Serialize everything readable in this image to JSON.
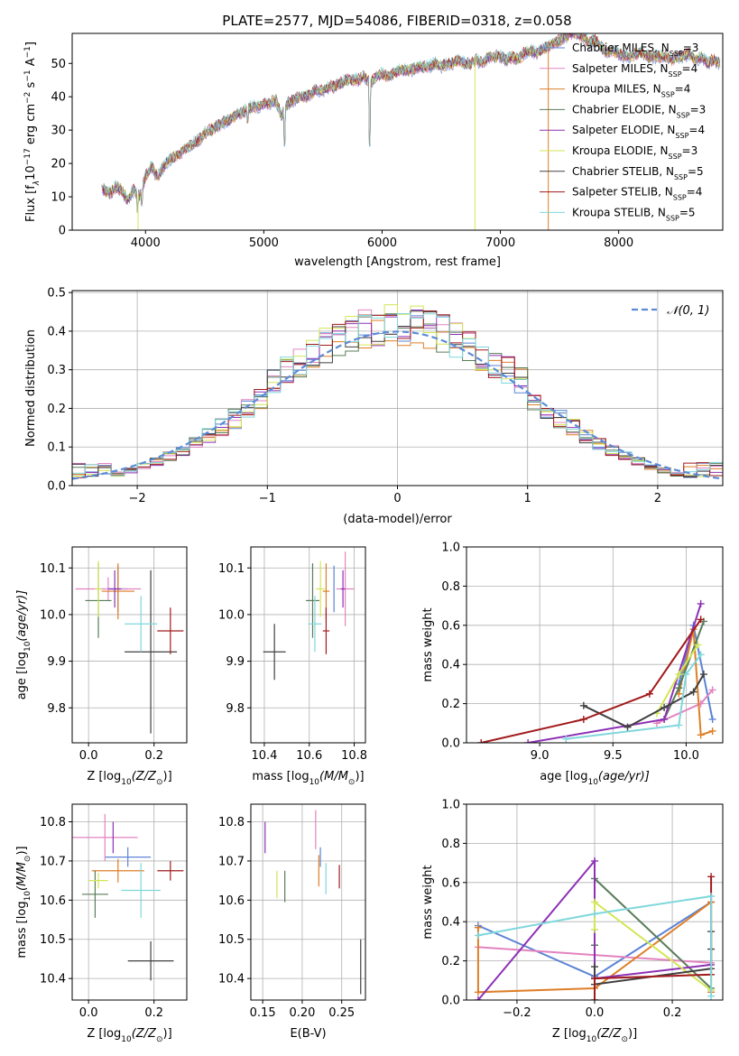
{
  "figure_title": "PLATE=2577, MJD=54086, FIBERID=0318, z=0.058",
  "model_colors": [
    "#5b83d6",
    "#e383c0",
    "#de7e26",
    "#587c58",
    "#8d31b5",
    "#d3e655",
    "#404040",
    "#a11a1c",
    "#7fd7dc"
  ],
  "legend_spectrum": [
    {
      "label": "Chabrier MILES, N",
      "sub": "SSP",
      "suffix": "=3"
    },
    {
      "label": "Salpeter MILES, N",
      "sub": "SSP",
      "suffix": "=4"
    },
    {
      "label": "Kroupa MILES, N",
      "sub": "SSP",
      "suffix": "=4"
    },
    {
      "label": "Chabrier ELODIE, N",
      "sub": "SSP",
      "suffix": "=3"
    },
    {
      "label": "Salpeter ELODIE, N",
      "sub": "SSP",
      "suffix": "=4"
    },
    {
      "label": "Kroupa ELODIE, N",
      "sub": "SSP",
      "suffix": "=3"
    },
    {
      "label": "Chabrier STELIB, N",
      "sub": "SSP",
      "suffix": "=5"
    },
    {
      "label": "Salpeter STELIB, N",
      "sub": "SSP",
      "suffix": "=4"
    },
    {
      "label": "Kroupa STELIB, N",
      "sub": "SSP",
      "suffix": "=5"
    }
  ],
  "chart_data": [
    {
      "id": "spectrum",
      "type": "line",
      "title": "PLATE=2577, MJD=54086, FIBERID=0318, z=0.058",
      "xlabel": "wavelength [Angstrom, rest frame]",
      "ylabel_main": "Flux [f",
      "ylabel_parts": {
        "lambda_sub": "λ",
        "mid": "10",
        "exp": "−17",
        "units": " erg cm",
        "units_exp": "−2",
        "s": " s",
        "s_exp": "−1",
        "a": " A",
        "a_exp": "−1",
        "close": "]"
      },
      "xlim": [
        3380,
        8880
      ],
      "ylim": [
        0,
        59
      ],
      "xticks": [
        4000,
        5000,
        6000,
        7000,
        8000
      ],
      "yticks": [
        0,
        10,
        20,
        30,
        40,
        50
      ],
      "x": [
        3650,
        3700,
        3750,
        3800,
        3850,
        3900,
        3950,
        4000,
        4050,
        4100,
        4150,
        4200,
        4250,
        4300,
        4350,
        4400,
        4450,
        4500,
        4550,
        4600,
        4650,
        4700,
        4750,
        4800,
        4850,
        4900,
        4950,
        5000,
        5050,
        5100,
        5150,
        5200,
        5250,
        5300,
        5350,
        5400,
        5450,
        5500,
        5550,
        5600,
        5650,
        5700,
        5750,
        5800,
        5850,
        5900,
        5950,
        6000,
        6050,
        6100,
        6150,
        6200,
        6250,
        6300,
        6350,
        6400,
        6450,
        6500,
        6550,
        6600,
        6650,
        6700,
        6750,
        6800,
        6850,
        6900,
        6950,
        7000,
        7050,
        7100,
        7150,
        7200,
        7250,
        7300,
        7350,
        7400,
        7450,
        7500,
        7550,
        7600,
        7650,
        7700,
        7750,
        7800,
        7850,
        7900,
        7950,
        8000,
        8050,
        8100,
        8150,
        8200,
        8250,
        8300,
        8350,
        8400,
        8450,
        8500,
        8550,
        8600,
        8650,
        8700,
        8750,
        8800,
        8850
      ],
      "flux": [
        12,
        11,
        13,
        12,
        9,
        12,
        10,
        16,
        19,
        16,
        19,
        21,
        22,
        23,
        25,
        26,
        27,
        29,
        30,
        31,
        32,
        33,
        34,
        35,
        36,
        37,
        37,
        38,
        38,
        39,
        34,
        38,
        39,
        40,
        40,
        41,
        42,
        42,
        43,
        43,
        44,
        45,
        45,
        45,
        46,
        44,
        46,
        47,
        46,
        47,
        48,
        48,
        48,
        49,
        49,
        49,
        50,
        49,
        50,
        50,
        51,
        50,
        50,
        51,
        50,
        52,
        52,
        52,
        51,
        52,
        51,
        53,
        54,
        53,
        54,
        55,
        56,
        57,
        58,
        59,
        59,
        58,
        56,
        57,
        55,
        53,
        54,
        53,
        52,
        52,
        53,
        53,
        52,
        52,
        52,
        52,
        51,
        52,
        52,
        53,
        51,
        52,
        50,
        51,
        50
      ],
      "absorption_lines": [
        {
          "x": 3934,
          "to": 6
        },
        {
          "x": 3969,
          "to": 8
        },
        {
          "x": 4861,
          "to": 33
        },
        {
          "x": 5175,
          "to": 26
        },
        {
          "x": 5893,
          "to": 26
        }
      ],
      "drops": [
        {
          "x": 3937,
          "model": 5
        },
        {
          "x": 6785,
          "model": 5
        },
        {
          "x": 7405,
          "model": 2
        }
      ]
    },
    {
      "id": "residuals",
      "type": "step",
      "xlabel": "(data-model)/error",
      "ylabel": "Normed distribution",
      "xlim": [
        -2.5,
        2.5
      ],
      "ylim": [
        0,
        0.505
      ],
      "xticks": [
        -2,
        -1,
        0,
        1,
        2
      ],
      "yticks": [
        0.0,
        0.1,
        0.2,
        0.3,
        0.4,
        0.5
      ],
      "xtick_labels": [
        "−2",
        "−1",
        "0",
        "1",
        "2"
      ],
      "ytick_labels": [
        "0.0",
        "0.1",
        "0.2",
        "0.3",
        "0.4",
        "0.5"
      ],
      "legend": "𝒩(0, 1)"
    },
    {
      "id": "age_vs_Z",
      "type": "errorbar",
      "xlabel": "Z [log",
      "xlabel_sub": "10",
      "xlabel_rest": "(Z/Z",
      "xlabel_sun": "⊙",
      "xlabel_close": ")]",
      "ylabel": "age  [log",
      "ylabel_sub": "10",
      "ylabel_rest": "(age/yr)]",
      "xlim": [
        -0.05,
        0.3
      ],
      "ylim": [
        9.725,
        10.145
      ],
      "xticks": [
        0.0,
        0.2
      ],
      "yticks": [
        9.8,
        9.9,
        10.0,
        10.1
      ],
      "xtick_labels": [
        "0.0",
        "0.2"
      ],
      "ytick_labels": [
        "9.8",
        "9.9",
        "10.0",
        "10.1"
      ],
      "points": [
        {
          "m": 0,
          "x": 0.09,
          "y": 10.055,
          "xerr": 0.03,
          "yerr": 0.05
        },
        {
          "m": 1,
          "x": 0.06,
          "y": 10.055,
          "xerr": 0.1,
          "yerr": 0.025
        },
        {
          "m": 2,
          "x": 0.09,
          "y": 10.05,
          "xerr": 0.05,
          "yerr": 0.06
        },
        {
          "m": 3,
          "x": 0.03,
          "y": 10.03,
          "xerr": 0.04,
          "yerr": 0.08
        },
        {
          "m": 4,
          "x": 0.08,
          "y": 10.055,
          "xerr": 0.02,
          "yerr": 0.04
        },
        {
          "m": 5,
          "x": 0.03,
          "y": 10.055,
          "xerr": 0.01,
          "yerr": 0.06
        },
        {
          "m": 6,
          "x": 0.19,
          "y": 9.92,
          "xerr": 0.08,
          "yerr": 0.175
        },
        {
          "m": 7,
          "x": 0.25,
          "y": 9.965,
          "xerr": 0.04,
          "yerr": 0.05
        },
        {
          "m": 8,
          "x": 0.16,
          "y": 9.98,
          "xerr": 0.05,
          "yerr": 0.06
        }
      ]
    },
    {
      "id": "age_vs_mass",
      "type": "errorbar",
      "xlabel": "mass [log",
      "xlabel_sub": "10",
      "xlabel_rest": "(M/M",
      "xlabel_sun": "⊙",
      "xlabel_close": ")]",
      "xlim": [
        10.34,
        10.85
      ],
      "ylim": [
        9.725,
        10.145
      ],
      "xticks": [
        10.4,
        10.6,
        10.8
      ],
      "yticks": [
        9.8,
        9.9,
        10.0,
        10.1
      ],
      "xtick_labels": [
        "10.4",
        "10.6",
        "10.8"
      ],
      "ytick_labels": [
        "9.8",
        "9.9",
        "10.0",
        "10.1"
      ],
      "points": [
        {
          "m": 0,
          "x": 10.71,
          "y": 10.055,
          "xerr": 0.0,
          "yerr": 0.05
        },
        {
          "m": 1,
          "x": 10.76,
          "y": 10.055,
          "xerr": 0.04,
          "yerr": 0.08
        },
        {
          "m": 2,
          "x": 10.675,
          "y": 10.05,
          "xerr": 0.015,
          "yerr": 0.06
        },
        {
          "m": 3,
          "x": 10.615,
          "y": 10.03,
          "xerr": 0.03,
          "yerr": 0.08
        },
        {
          "m": 4,
          "x": 10.75,
          "y": 10.055,
          "xerr": 0.01,
          "yerr": 0.04
        },
        {
          "m": 5,
          "x": 10.65,
          "y": 10.055,
          "xerr": 0.02,
          "yerr": 0.06
        },
        {
          "m": 6,
          "x": 10.445,
          "y": 9.92,
          "xerr": 0.05,
          "yerr": 0.06
        },
        {
          "m": 7,
          "x": 10.675,
          "y": 9.965,
          "xerr": 0.015,
          "yerr": 0.05
        },
        {
          "m": 8,
          "x": 10.625,
          "y": 9.98,
          "xerr": 0.03,
          "yerr": 0.06
        }
      ]
    },
    {
      "id": "massweight_vs_age",
      "type": "line",
      "xlabel": "age  [log",
      "xlabel_sub": "10",
      "xlabel_rest": "(age/yr)]",
      "ylabel": "mass weight",
      "xlim": [
        8.5,
        10.25
      ],
      "ylim": [
        0,
        1.0
      ],
      "xticks": [
        9.0,
        9.5,
        10.0
      ],
      "yticks": [
        0.0,
        0.2,
        0.4,
        0.6,
        0.8,
        1.0
      ],
      "xtick_labels": [
        "9.0",
        "9.5",
        "10.0"
      ],
      "ytick_labels": [
        "0.0",
        "0.2",
        "0.4",
        "0.6",
        "0.8",
        "1.0"
      ],
      "series": [
        {
          "m": 0,
          "x": [
            9.95,
            10.05,
            10.18
          ],
          "y": [
            0.3,
            0.6,
            0.12
          ]
        },
        {
          "m": 1,
          "x": [
            9.8,
            10.1,
            10.18
          ],
          "y": [
            0.1,
            0.2,
            0.27
          ]
        },
        {
          "m": 2,
          "x": [
            9.95,
            10.05,
            10.1,
            10.18
          ],
          "y": [
            0.25,
            0.58,
            0.04,
            0.06
          ]
        },
        {
          "m": 3,
          "x": [
            9.85,
            9.95,
            10.12
          ],
          "y": [
            0.12,
            0.28,
            0.62
          ]
        },
        {
          "m": 4,
          "x": [
            8.92,
            9.85,
            10.1
          ],
          "y": [
            0.0,
            0.12,
            0.71
          ]
        },
        {
          "m": 5,
          "x": [
            9.8,
            9.95,
            10.08
          ],
          "y": [
            0.15,
            0.35,
            0.5
          ]
        },
        {
          "m": 6,
          "x": [
            9.3,
            9.6,
            9.85,
            10.05,
            10.12
          ],
          "y": [
            0.19,
            0.08,
            0.18,
            0.26,
            0.35
          ]
        },
        {
          "m": 7,
          "x": [
            8.6,
            9.3,
            9.75,
            10.1
          ],
          "y": [
            0.0,
            0.12,
            0.25,
            0.63
          ]
        },
        {
          "m": 8,
          "x": [
            9.18,
            9.95,
            10.0,
            10.1
          ],
          "y": [
            0.02,
            0.09,
            0.35,
            0.45
          ]
        }
      ]
    },
    {
      "id": "mass_vs_Z",
      "type": "errorbar",
      "xlabel": "Z [log",
      "xlabel_sub": "10",
      "xlabel_rest": "(Z/Z",
      "xlabel_sun": "⊙",
      "xlabel_close": ")]",
      "ylabel": "mass [log",
      "ylabel_sub": "10",
      "ylabel_rest": "(M/M",
      "ylabel_sun": "⊙",
      "ylabel_close": ")]",
      "xlim": [
        -0.05,
        0.3
      ],
      "ylim": [
        10.345,
        10.845
      ],
      "xticks": [
        0.0,
        0.2
      ],
      "yticks": [
        10.4,
        10.5,
        10.6,
        10.7,
        10.8
      ],
      "xtick_labels": [
        "0.0",
        "0.2"
      ],
      "ytick_labels": [
        "10.4",
        "10.5",
        "10.6",
        "10.7",
        "10.8"
      ],
      "points": [
        {
          "m": 0,
          "x": 0.12,
          "y": 10.71,
          "xerr": 0.07,
          "yerr": 0.025
        },
        {
          "m": 1,
          "x": 0.05,
          "y": 10.76,
          "xerr": 0.1,
          "yerr": 0.06
        },
        {
          "m": 2,
          "x": 0.09,
          "y": 10.675,
          "xerr": 0.08,
          "yerr": 0.03
        },
        {
          "m": 3,
          "x": 0.02,
          "y": 10.615,
          "xerr": 0.04,
          "yerr": 0.06
        },
        {
          "m": 4,
          "x": 0.075,
          "y": 10.76,
          "xerr": 0.0,
          "yerr": 0.04
        },
        {
          "m": 5,
          "x": 0.03,
          "y": 10.65,
          "xerr": 0.03,
          "yerr": 0.02
        },
        {
          "m": 6,
          "x": 0.19,
          "y": 10.445,
          "xerr": 0.07,
          "yerr": 0.05
        },
        {
          "m": 7,
          "x": 0.25,
          "y": 10.675,
          "xerr": 0.04,
          "yerr": 0.025
        },
        {
          "m": 8,
          "x": 0.16,
          "y": 10.625,
          "xerr": 0.06,
          "yerr": 0.07
        }
      ]
    },
    {
      "id": "mass_vs_EBV",
      "type": "errorbar",
      "xlabel": "E(B-V)",
      "xlim": [
        0.135,
        0.28
      ],
      "ylim": [
        10.345,
        10.845
      ],
      "xticks": [
        0.15,
        0.2,
        0.25
      ],
      "yticks": [
        10.4,
        10.5,
        10.6,
        10.7,
        10.8
      ],
      "xtick_labels": [
        "0.15",
        "0.20",
        "0.25"
      ],
      "ytick_labels": [
        "10.4",
        "10.5",
        "10.6",
        "10.7",
        "10.8"
      ],
      "points": [
        {
          "m": 0,
          "x": 0.223,
          "y": 10.71,
          "xerr": 0,
          "yerr": 0.025
        },
        {
          "m": 1,
          "x": 0.217,
          "y": 10.78,
          "xerr": 0,
          "yerr": 0.05
        },
        {
          "m": 2,
          "x": 0.221,
          "y": 10.675,
          "xerr": 0,
          "yerr": 0.04
        },
        {
          "m": 3,
          "x": 0.178,
          "y": 10.635,
          "xerr": 0,
          "yerr": 0.04
        },
        {
          "m": 4,
          "x": 0.153,
          "y": 10.76,
          "xerr": 0,
          "yerr": 0.04
        },
        {
          "m": 5,
          "x": 0.168,
          "y": 10.64,
          "xerr": 0,
          "yerr": 0.035
        },
        {
          "m": 6,
          "x": 0.274,
          "y": 10.43,
          "xerr": 0,
          "yerr": 0.07
        },
        {
          "m": 7,
          "x": 0.247,
          "y": 10.66,
          "xerr": 0,
          "yerr": 0.03
        },
        {
          "m": 8,
          "x": 0.23,
          "y": 10.655,
          "xerr": 0,
          "yerr": 0.04
        }
      ]
    },
    {
      "id": "massweight_vs_Z",
      "type": "line",
      "xlabel": "Z [log",
      "xlabel_sub": "10",
      "xlabel_rest": "(Z/Z",
      "xlabel_sun": "⊙",
      "xlabel_close": ")]",
      "ylabel": "mass weight",
      "xlim": [
        -0.33,
        0.33
      ],
      "ylim": [
        0,
        1.0
      ],
      "xticks": [
        -0.2,
        0.0,
        0.2
      ],
      "yticks": [
        0.0,
        0.2,
        0.4,
        0.6,
        0.8,
        1.0
      ],
      "xtick_labels": [
        "−0.2",
        "0.0",
        "0.2"
      ],
      "ytick_labels": [
        "0.0",
        "0.2",
        "0.4",
        "0.6",
        "0.8",
        "1.0"
      ],
      "series": [
        {
          "m": 0,
          "x": [
            -0.3,
            0.0,
            0.3
          ],
          "y": [
            0.38,
            0.12,
            0.5
          ]
        },
        {
          "m": 1,
          "x": [
            -0.3,
            0.0,
            0.3
          ],
          "y": [
            0.27,
            0.23,
            0.19
          ]
        },
        {
          "m": 2,
          "x": [
            -0.3,
            -0.3,
            0.0,
            0.3,
            0.3
          ],
          "y": [
            0.37,
            0.04,
            0.06,
            0.5,
            0.04
          ]
        },
        {
          "m": 3,
          "x": [
            0.0,
            0.0,
            0.3
          ],
          "y": [
            0.28,
            0.62,
            0.06
          ]
        },
        {
          "m": 4,
          "x": [
            -0.3,
            0.0,
            0.0,
            0.3
          ],
          "y": [
            0.0,
            0.71,
            0.11,
            0.18
          ]
        },
        {
          "m": 5,
          "x": [
            0.0,
            0.0,
            0.3
          ],
          "y": [
            0.36,
            0.5,
            0.05
          ]
        },
        {
          "m": 6,
          "x": [
            0.0,
            0.0,
            0.3,
            0.3,
            0.3
          ],
          "y": [
            0.17,
            0.08,
            0.16,
            0.26,
            0.35
          ]
        },
        {
          "m": 7,
          "x": [
            0.0,
            0.0,
            0.3,
            0.3
          ],
          "y": [
            0.0,
            0.11,
            0.13,
            0.63
          ]
        },
        {
          "m": 8,
          "x": [
            -0.3,
            0.0,
            0.3,
            0.3
          ],
          "y": [
            0.33,
            0.44,
            0.53,
            0.02
          ]
        }
      ]
    }
  ]
}
